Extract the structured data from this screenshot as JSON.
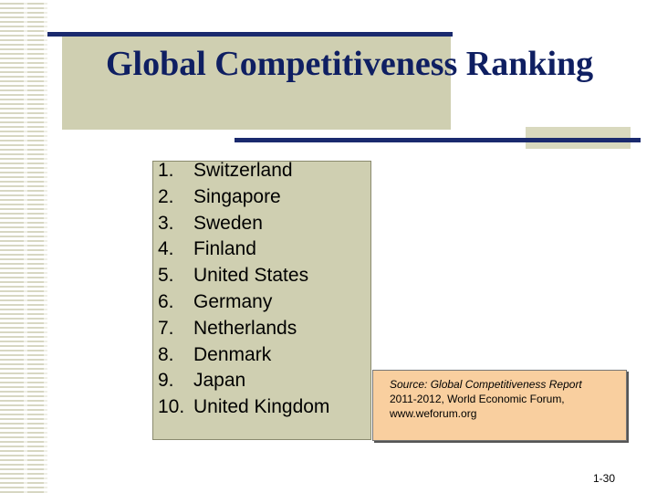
{
  "slide": {
    "title": "Global Competitiveness Ranking",
    "rankings": [
      {
        "rank": "1.",
        "country": "Switzerland"
      },
      {
        "rank": "2.",
        "country": "Singapore"
      },
      {
        "rank": "3.",
        "country": "Sweden"
      },
      {
        "rank": "4.",
        "country": "Finland"
      },
      {
        "rank": "5.",
        "country": "United States"
      },
      {
        "rank": "6.",
        "country": "Germany"
      },
      {
        "rank": "7.",
        "country": "Netherlands"
      },
      {
        "rank": "8.",
        "country": "Denmark"
      },
      {
        "rank": "9.",
        "country": "Japan"
      },
      {
        "rank": "10.",
        "country": "United Kingdom"
      }
    ],
    "source": {
      "label": "Source: Global Competitiveness Report",
      "detail": "2011-2012, World Economic Forum,",
      "url": "www.weforum.org"
    },
    "page_number": "1-30"
  },
  "colors": {
    "title": "#0f1f62",
    "accent_bar": "#1a2a6e",
    "panel": "#cfcfb1",
    "source_box": "#f9cf9f"
  }
}
